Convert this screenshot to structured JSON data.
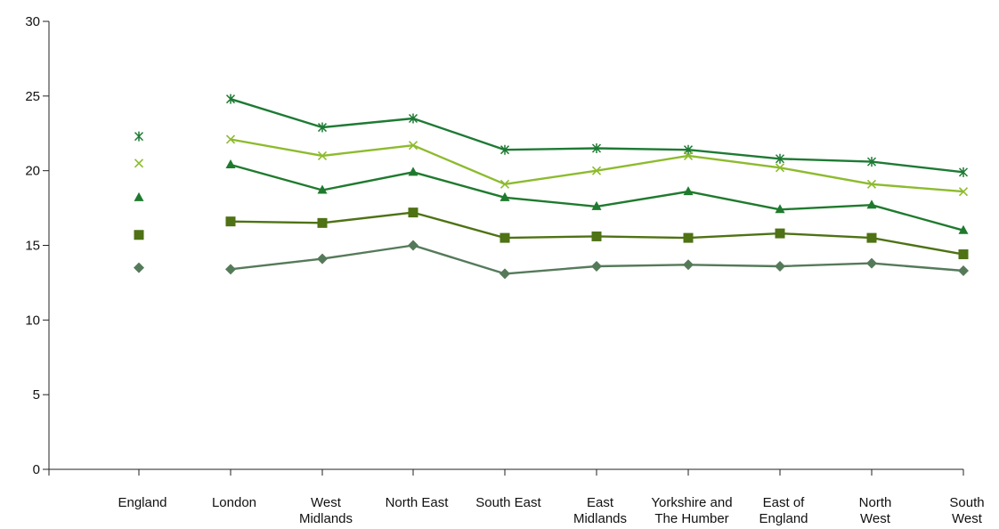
{
  "chart_data": {
    "type": "line",
    "categories": [
      "England",
      "London",
      "West Midlands",
      "North East",
      "South East",
      "East Midlands",
      "Yorkshire and The Humber",
      "East of England",
      "North West",
      "South West"
    ],
    "category_label_lines": [
      [
        "England"
      ],
      [
        "London"
      ],
      [
        "West",
        "Midlands"
      ],
      [
        "North East"
      ],
      [
        "South East"
      ],
      [
        "East",
        "Midlands"
      ],
      [
        "Yorkshire and",
        "The Humber"
      ],
      [
        "East of",
        "England"
      ],
      [
        "North",
        "West"
      ],
      [
        "South",
        "West"
      ]
    ],
    "ylim": [
      0,
      30
    ],
    "yticks": [
      "0",
      "5",
      "10",
      "15",
      "20",
      "25",
      "30"
    ],
    "title": "",
    "xlabel": "",
    "ylabel": "",
    "grid": false,
    "england_connected": false,
    "series": [
      {
        "marker": "asterisk",
        "color": "#1e7a34",
        "values": [
          22.3,
          24.8,
          22.9,
          23.5,
          21.4,
          21.5,
          21.4,
          20.8,
          20.6,
          19.9
        ]
      },
      {
        "marker": "x",
        "color": "#8dbb2e",
        "values": [
          20.5,
          22.1,
          21.0,
          21.7,
          19.1,
          20.0,
          21.0,
          20.2,
          19.1,
          18.6
        ]
      },
      {
        "marker": "triangle",
        "color": "#1f7a2e",
        "values": [
          18.2,
          20.4,
          18.7,
          19.9,
          18.2,
          17.6,
          18.6,
          17.4,
          17.7,
          16.0
        ]
      },
      {
        "marker": "square",
        "color": "#4e7214",
        "values": [
          15.7,
          16.6,
          16.5,
          17.2,
          15.5,
          15.6,
          15.5,
          15.8,
          15.5,
          14.4
        ]
      },
      {
        "marker": "diamond",
        "color": "#557a5a",
        "values": [
          13.5,
          13.4,
          14.1,
          15.0,
          13.1,
          13.6,
          13.7,
          13.6,
          13.8,
          13.3
        ]
      }
    ]
  }
}
